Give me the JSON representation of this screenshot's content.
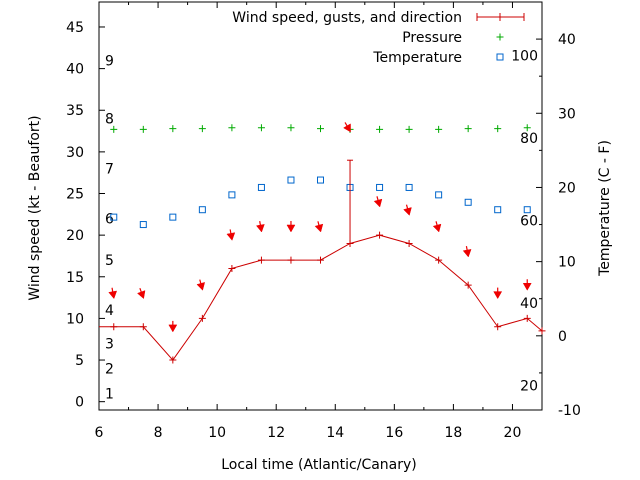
{
  "chart_data": {
    "type": "line",
    "xlabel": "Local time (Atlantic/Canary)",
    "ylabel_left": "Wind speed (kt - Beaufort)",
    "ylabel_right": "Temperature (C - F)",
    "x_range": [
      6,
      21
    ],
    "x_ticks": [
      6,
      8,
      10,
      12,
      14,
      16,
      18,
      20
    ],
    "y_left_range": [
      -1,
      48
    ],
    "y_left_ticks": [
      0,
      5,
      10,
      15,
      20,
      25,
      30,
      35,
      40,
      45
    ],
    "y_right_range": [
      -10,
      45
    ],
    "y_right_ticks": [
      -10,
      0,
      10,
      20,
      30,
      40
    ],
    "beaufort_labels": [
      {
        "label": "1",
        "kt": 1
      },
      {
        "label": "2",
        "kt": 4
      },
      {
        "label": "3",
        "kt": 7
      },
      {
        "label": "4",
        "kt": 11
      },
      {
        "label": "5",
        "kt": 17
      },
      {
        "label": "6",
        "kt": 22
      },
      {
        "label": "7",
        "kt": 28
      },
      {
        "label": "8",
        "kt": 34
      },
      {
        "label": "9",
        "kt": 41
      }
    ],
    "fahrenheit_labels": [
      {
        "label": "20",
        "f": 20
      },
      {
        "label": "40",
        "f": 40
      },
      {
        "label": "60",
        "f": 60
      },
      {
        "label": "80",
        "f": 80
      },
      {
        "label": "100",
        "f": 100
      }
    ],
    "legend": {
      "wind": "Wind speed, gusts, and direction",
      "pressure": "Pressure",
      "temperature": "Temperature"
    },
    "series": [
      {
        "name": "Wind speed, gusts, and direction",
        "color": "#cc0000",
        "x": [
          5.5,
          6.5,
          7.5,
          8.5,
          9.5,
          10.5,
          11.5,
          12.5,
          13.5,
          14.5,
          15.5,
          16.5,
          17.5,
          18.5,
          19.5,
          20.5,
          21
        ],
        "y": [
          9,
          9,
          9,
          5,
          10,
          16,
          17,
          17,
          17,
          19,
          20,
          19,
          17,
          14,
          9,
          10,
          8.5
        ],
        "gust": {
          "x": 14.5,
          "y_from": 19,
          "y_to": 29
        }
      },
      {
        "name": "Pressure",
        "color": "#00aa00",
        "x": [
          6.5,
          7.5,
          8.5,
          9.5,
          10.5,
          11.5,
          12.5,
          13.5,
          14.5,
          15.5,
          16.5,
          17.5,
          18.5,
          19.5,
          20.5
        ],
        "y": [
          32.7,
          32.7,
          32.8,
          32.8,
          32.9,
          32.9,
          32.9,
          32.8,
          32.7,
          32.7,
          32.7,
          32.7,
          32.8,
          32.8,
          32.9
        ]
      },
      {
        "name": "Temperature",
        "color": "#0066cc",
        "unit": "C",
        "x": [
          6.5,
          7.5,
          8.5,
          9.5,
          10.5,
          11.5,
          12.5,
          13.5,
          14.5,
          15.5,
          16.5,
          17.5,
          18.5,
          19.5,
          20.5
        ],
        "y": [
          16,
          15,
          16,
          17,
          19,
          20,
          21,
          21,
          20,
          20,
          20,
          19,
          18,
          17,
          17
        ]
      }
    ],
    "direction_arrows": {
      "color": "#ee0000",
      "x": [
        6.5,
        7.5,
        8.5,
        9.5,
        10.5,
        11.5,
        12.5,
        13.5,
        14.5,
        15.5,
        16.5,
        17.5,
        18.5,
        19.5,
        20.5
      ],
      "y": [
        12.5,
        12.5,
        8.5,
        13.5,
        19.5,
        20.5,
        20.5,
        20.5,
        32.5,
        23.5,
        22.5,
        20.5,
        17.5,
        12.5,
        13.5
      ],
      "direction_deg": [
        10,
        20,
        0,
        15,
        10,
        10,
        0,
        15,
        30,
        15,
        15,
        15,
        10,
        0,
        0
      ]
    },
    "grid": false,
    "legend_position": "top-right"
  }
}
